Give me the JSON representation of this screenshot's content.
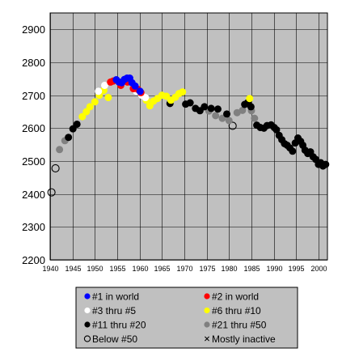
{
  "chart_data": {
    "type": "scatter",
    "title": "",
    "xlabel": "",
    "ylabel": "",
    "xlim": [
      1940,
      2002
    ],
    "ylim": [
      2200,
      2950
    ],
    "grid": true,
    "background_color": "#c0c0c0",
    "grid_color": "#000000",
    "y_ticks": [
      "2200",
      "2300",
      "2400",
      "2500",
      "2600",
      "2700",
      "2800",
      "2900"
    ],
    "x_ticks": [
      "1940",
      "1945",
      "1950",
      "1955",
      "1960",
      "1965",
      "1970",
      "1975",
      "1980",
      "1985",
      "1990",
      "1995",
      "2000"
    ],
    "legend_position": "bottom",
    "legend": [
      {
        "key": "rank1",
        "label": "#1 in world",
        "color": "#0000ff",
        "marker": "filled"
      },
      {
        "key": "rank2",
        "label": "#2 in world",
        "color": "#ff0000",
        "marker": "filled"
      },
      {
        "key": "rank3_5",
        "label": "#3 thru #5",
        "color": "#ffffff",
        "marker": "filled"
      },
      {
        "key": "rank6_10",
        "label": "#6 thru #10",
        "color": "#ffff00",
        "marker": "filled"
      },
      {
        "key": "rank11_20",
        "label": "#11 thru #20",
        "color": "#000000",
        "marker": "filled"
      },
      {
        "key": "rank21_50",
        "label": "#21 thru #50",
        "color": "#808080",
        "marker": "filled"
      },
      {
        "key": "below50",
        "label": "Below #50",
        "color": "#000000",
        "marker": "hollow"
      },
      {
        "key": "inactive",
        "label": "Mostly inactive",
        "color": "#000000",
        "marker": "cross"
      }
    ],
    "series": [
      {
        "key": "below50",
        "points": [
          [
            1940.3,
            2405
          ],
          [
            1941.2,
            2478
          ],
          [
            1980.8,
            2607
          ]
        ]
      },
      {
        "key": "rank21_50",
        "points": [
          [
            1942.1,
            2535
          ],
          [
            1943.3,
            2562
          ],
          [
            1975.5,
            2652
          ],
          [
            1977,
            2638
          ],
          [
            1978.5,
            2630
          ],
          [
            1980,
            2623
          ],
          [
            1981.8,
            2647
          ],
          [
            1983,
            2654
          ],
          [
            1985,
            2653
          ],
          [
            1985.7,
            2630
          ]
        ]
      },
      {
        "key": "rank11_20",
        "points": [
          [
            1944.1,
            2572
          ],
          [
            1945.1,
            2598
          ],
          [
            1946,
            2612
          ],
          [
            1966.8,
            2675
          ],
          [
            1970.3,
            2673
          ],
          [
            1971.3,
            2677
          ],
          [
            1972.5,
            2660
          ],
          [
            1973.5,
            2653
          ],
          [
            1974.5,
            2665
          ],
          [
            1976,
            2660
          ],
          [
            1977.5,
            2658
          ],
          [
            1979.5,
            2643
          ],
          [
            1983.5,
            2672
          ],
          [
            1984.2,
            2678
          ],
          [
            1984.9,
            2665
          ],
          [
            1986.2,
            2609
          ],
          [
            1987,
            2602
          ],
          [
            1987.8,
            2600
          ],
          [
            1988.5,
            2608
          ],
          [
            1989.4,
            2610
          ],
          [
            1990.1,
            2602
          ],
          [
            1990.6,
            2595
          ],
          [
            1991.2,
            2578
          ],
          [
            1991.8,
            2565
          ],
          [
            1992.4,
            2553
          ],
          [
            1993,
            2548
          ],
          [
            1993.6,
            2540
          ],
          [
            1994.2,
            2530
          ],
          [
            1994.8,
            2555
          ],
          [
            1995.4,
            2570
          ],
          [
            1996,
            2560
          ],
          [
            1996.5,
            2548
          ],
          [
            1997,
            2533
          ],
          [
            1997.6,
            2523
          ],
          [
            1998.2,
            2528
          ],
          [
            1998.8,
            2513
          ],
          [
            1999.4,
            2505
          ],
          [
            2000,
            2490
          ],
          [
            2000.5,
            2495
          ],
          [
            2001,
            2485
          ],
          [
            2001.6,
            2490
          ]
        ]
      },
      {
        "key": "rank6_10",
        "points": [
          [
            1947.2,
            2635
          ],
          [
            1948.1,
            2650
          ],
          [
            1948.9,
            2665
          ],
          [
            1950,
            2680
          ],
          [
            1951,
            2700
          ],
          [
            1952,
            2715
          ],
          [
            1953,
            2693
          ],
          [
            1961.5,
            2685
          ],
          [
            1962.3,
            2668
          ],
          [
            1963.1,
            2682
          ],
          [
            1964,
            2690
          ],
          [
            1965,
            2700
          ],
          [
            1966,
            2697
          ],
          [
            1967,
            2685
          ],
          [
            1968,
            2694
          ],
          [
            1968.8,
            2705
          ],
          [
            1969.6,
            2710
          ],
          [
            1984.6,
            2690
          ]
        ]
      },
      {
        "key": "rank3_5",
        "points": [
          [
            1950.8,
            2712
          ],
          [
            1952.2,
            2730
          ],
          [
            1959.3,
            2712
          ],
          [
            1960.5,
            2700
          ],
          [
            1961.3,
            2693
          ]
        ]
      },
      {
        "key": "rank2",
        "points": [
          [
            1953.5,
            2740
          ],
          [
            1954.1,
            2743
          ],
          [
            1955.8,
            2730
          ],
          [
            1957.3,
            2740
          ],
          [
            1958.6,
            2720
          ],
          [
            1959.6,
            2718
          ],
          [
            1960.3,
            2708
          ]
        ]
      },
      {
        "key": "rank1",
        "points": [
          [
            1954.8,
            2747
          ],
          [
            1955.4,
            2740
          ],
          [
            1956,
            2738
          ],
          [
            1956.6,
            2748
          ],
          [
            1957.2,
            2752
          ],
          [
            1957.8,
            2752
          ],
          [
            1958.3,
            2738
          ],
          [
            1959,
            2728
          ],
          [
            1960.1,
            2712
          ]
        ]
      }
    ]
  }
}
